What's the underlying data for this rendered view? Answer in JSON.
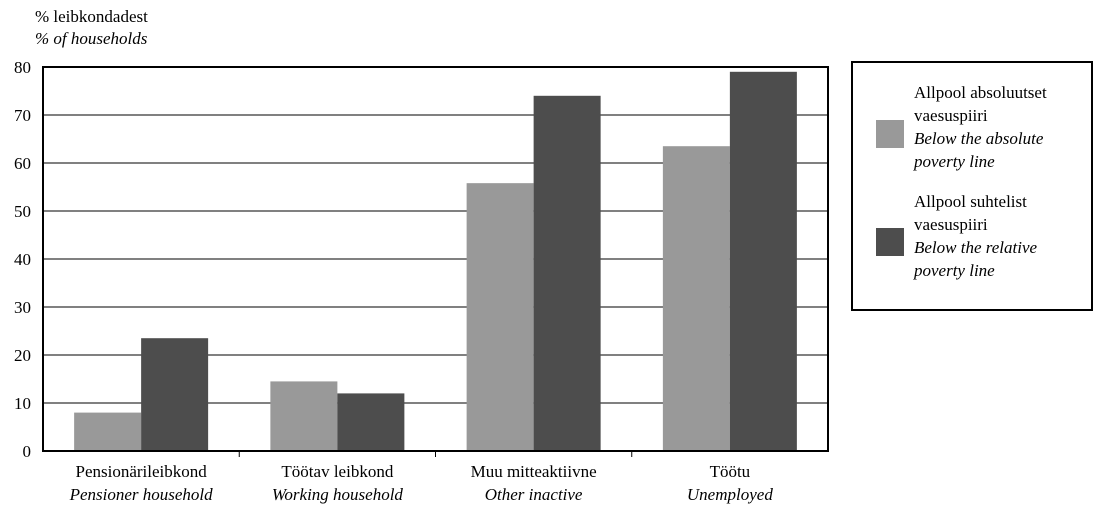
{
  "chart_data": {
    "type": "bar",
    "ylabel_line1": "% leibkondadest",
    "ylabel_line2": "% of households",
    "ylim": [
      0,
      80
    ],
    "yticks": [
      0,
      10,
      20,
      30,
      40,
      50,
      60,
      70,
      80
    ],
    "grid": true,
    "legend_position": "right",
    "categories": [
      {
        "et": "Pensionärileibkond",
        "en": "Pensioner household"
      },
      {
        "et": "Töötav leibkond",
        "en": "Working household"
      },
      {
        "et": "Muu mitteaktiivne",
        "en": "Other inactive"
      },
      {
        "et": "Töötu",
        "en": "Unemployed"
      }
    ],
    "series": [
      {
        "name_et_line1": "Allpool absoluutset",
        "name_et_line2": "vaesuspiiri",
        "name_en_line1": "Below the absolute",
        "name_en_line2": "poverty line",
        "color": "#999999",
        "values": [
          8,
          14.5,
          55.8,
          63.5
        ]
      },
      {
        "name_et_line1": "Allpool suhtelist",
        "name_et_line2": "vaesuspiiri",
        "name_en_line1": "Below the relative",
        "name_en_line2": "poverty line",
        "color": "#4d4d4d",
        "values": [
          23.5,
          12,
          74,
          79
        ]
      }
    ]
  }
}
